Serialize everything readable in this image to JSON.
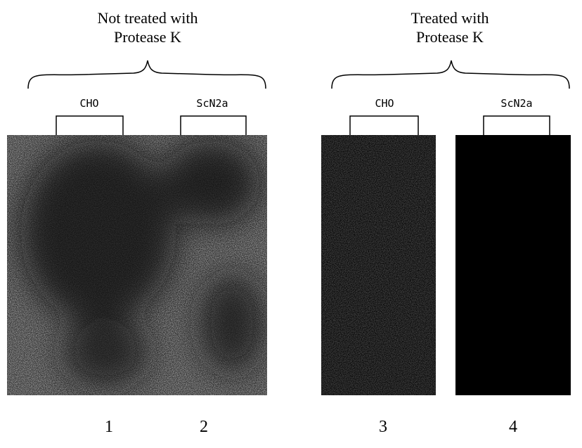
{
  "groups": [
    {
      "title": [
        "Not treated with",
        "Protease K"
      ],
      "lanes": [
        "CHO",
        "ScN2a"
      ]
    },
    {
      "title": [
        "Treated with",
        "Protease K"
      ],
      "lanes": [
        "CHO",
        "ScN2a"
      ]
    }
  ],
  "lane_numbers": [
    "1",
    "2",
    "3",
    "4"
  ]
}
